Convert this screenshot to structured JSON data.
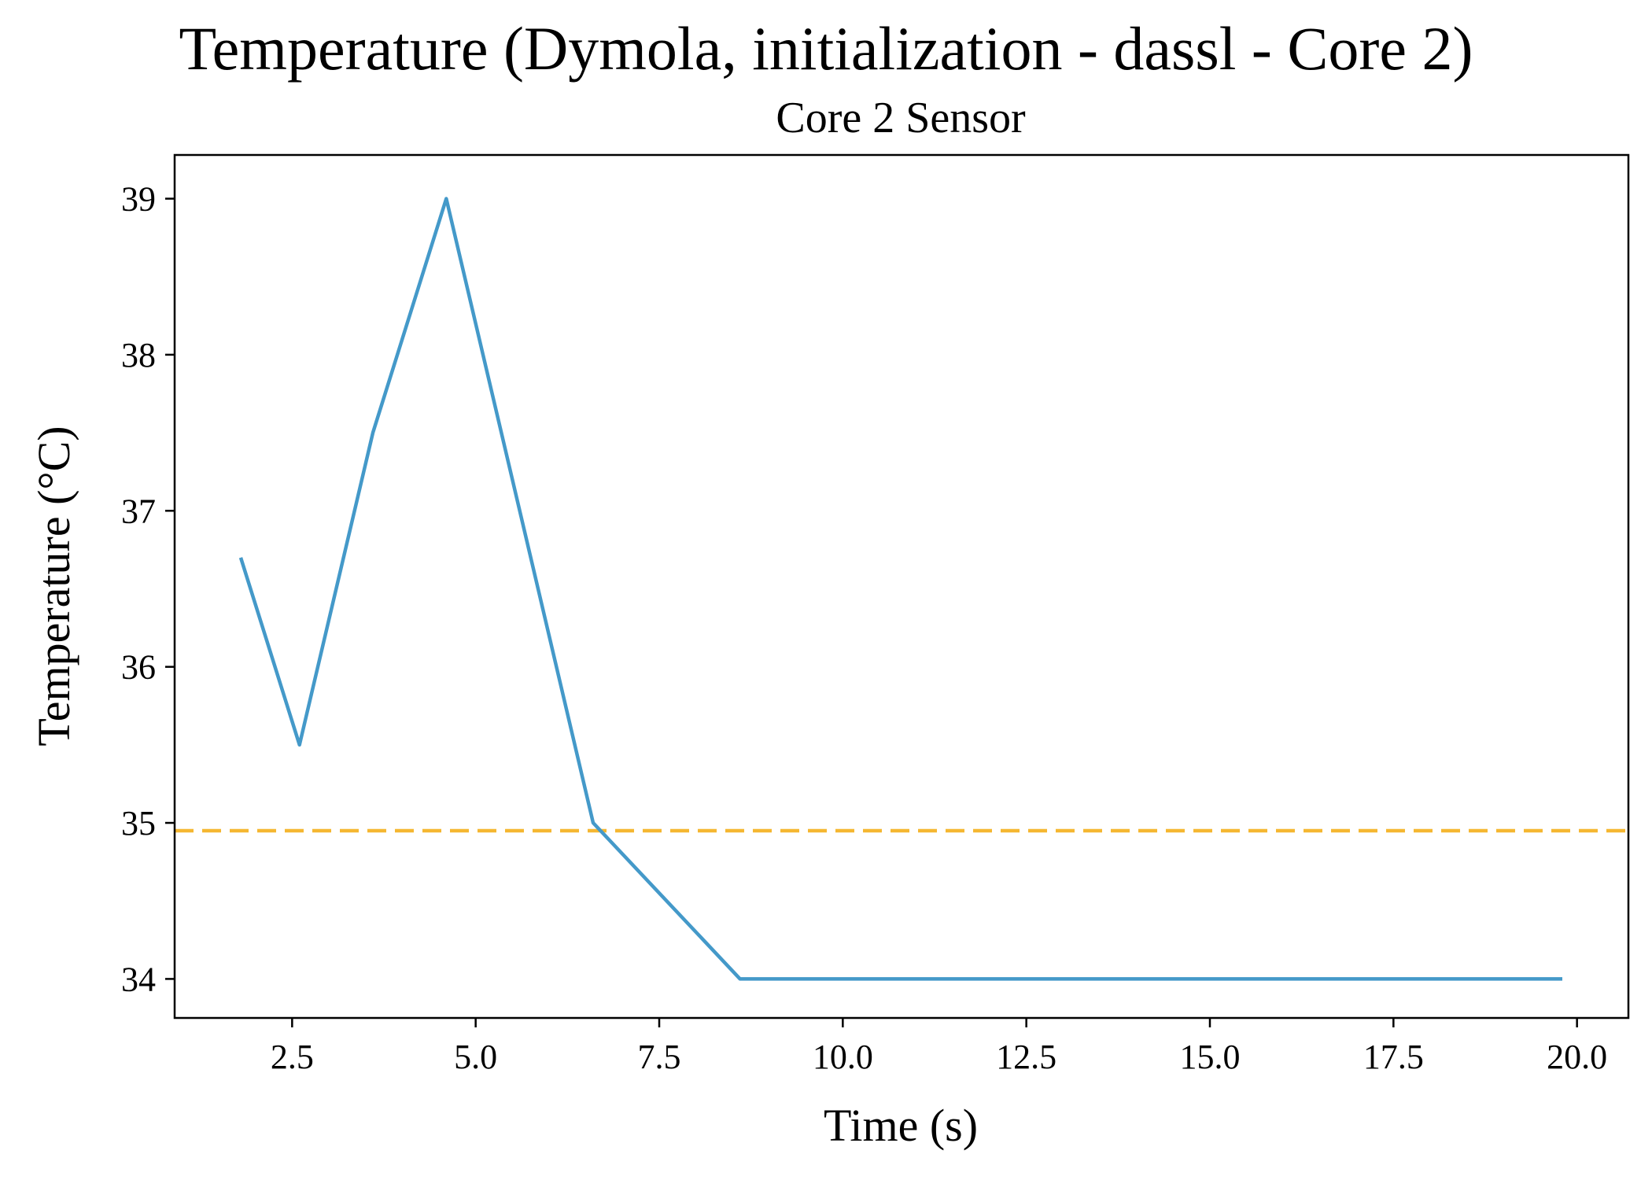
{
  "chart_data": {
    "type": "line",
    "title": "Temperature (Dymola, initialization - dassl - Core 2)",
    "subtitle": "Core 2 Sensor",
    "xlabel": "Time (s)",
    "ylabel": "Temperature (°C)",
    "xlim": [
      0.9,
      20.7
    ],
    "ylim": [
      33.75,
      39.28
    ],
    "x_ticks": [
      2.5,
      5.0,
      7.5,
      10.0,
      12.5,
      15.0,
      17.5,
      20.0
    ],
    "x_tick_labels": [
      "2.5",
      "5.0",
      "7.5",
      "10.0",
      "12.5",
      "15.0",
      "17.5",
      "20.0"
    ],
    "y_ticks": [
      34,
      35,
      36,
      37,
      38,
      39
    ],
    "y_tick_labels": [
      "34",
      "35",
      "36",
      "37",
      "38",
      "39"
    ],
    "grid": false,
    "series": [
      {
        "style": "solid",
        "color": "#4499c9",
        "x": [
          1.8,
          2.6,
          3.6,
          4.6,
          6.6,
          8.6,
          19.8
        ],
        "y": [
          36.7,
          35.5,
          37.5,
          39.0,
          35.0,
          34.0,
          34.0
        ]
      }
    ],
    "reference_lines": [
      {
        "orientation": "horizontal",
        "y": 34.95,
        "style": "dashed",
        "color": "#f5b731"
      }
    ]
  }
}
